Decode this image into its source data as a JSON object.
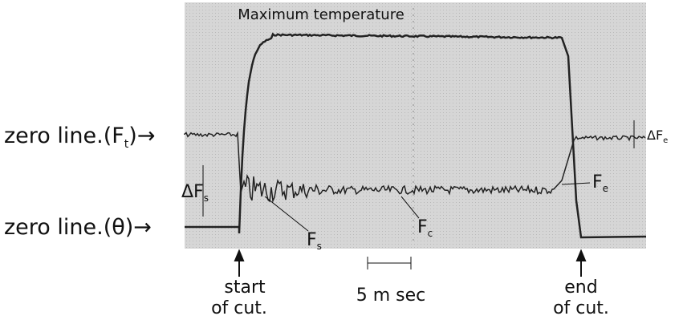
{
  "title": "Maximum temperature",
  "zero_line_force": {
    "text": "zero line.(",
    "symbol": "F",
    "sub": "t",
    "close": ")→"
  },
  "zero_line_temp": {
    "text": "zero line.(θ)→"
  },
  "delta_fs": {
    "symbol": "ΔF",
    "sub": "s"
  },
  "fs": {
    "symbol": "F",
    "sub": "s"
  },
  "fc": {
    "symbol": "F",
    "sub": "c"
  },
  "fe": {
    "symbol": "F",
    "sub": "e"
  },
  "delta_fe": {
    "symbol": "ΔF",
    "sub": "e"
  },
  "start_of_cut": [
    "start",
    "of cut."
  ],
  "time_scale": "5 m sec",
  "end_of_cut": [
    "end",
    "of cut."
  ]
}
